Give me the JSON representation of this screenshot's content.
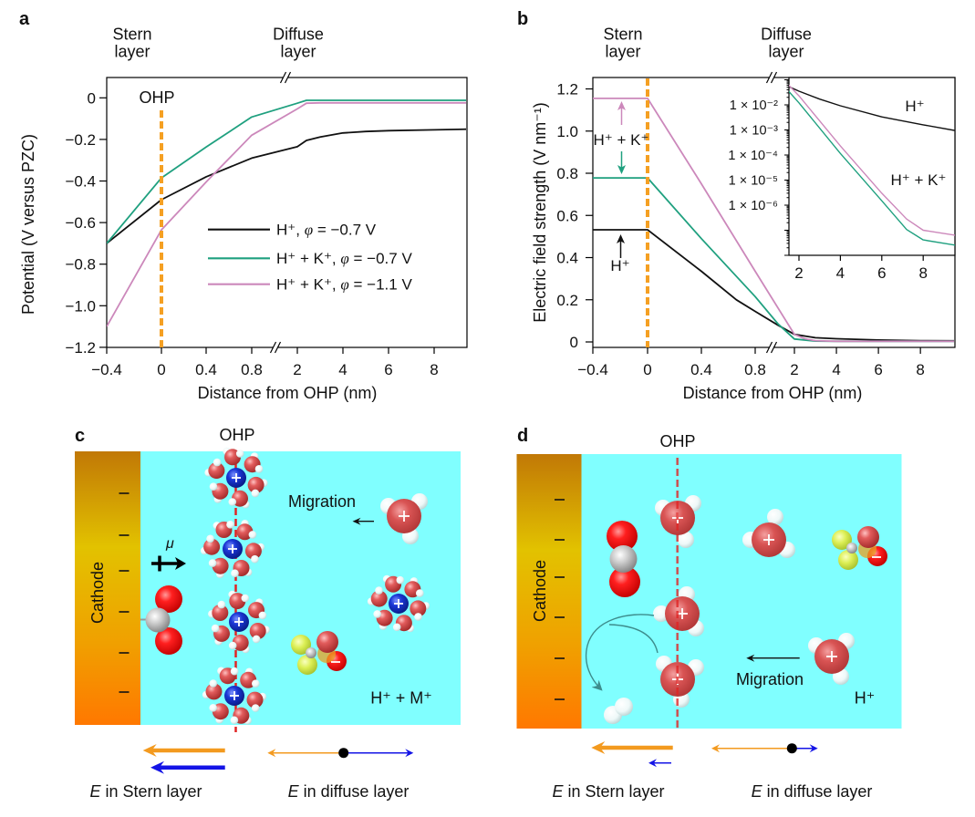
{
  "figure": {
    "panel_a": {
      "label": "a",
      "header_left": {
        "line1": "Stern",
        "line2": "layer"
      },
      "header_right": {
        "line1": "Diffuse",
        "line2": "layer"
      },
      "ohp_label": "OHP",
      "legend": [
        {
          "prefix": "H⁺, ",
          "symbol": "φ",
          "suffix": " = −0.7 V"
        },
        {
          "prefix": "H⁺ + K⁺, ",
          "symbol": "φ",
          "suffix": " = −0.7 V"
        },
        {
          "prefix": "H⁺ + K⁺, ",
          "symbol": "φ",
          "suffix": " = −1.1 V"
        }
      ]
    },
    "panel_b": {
      "label": "b",
      "header_left": {
        "line1": "Stern",
        "line2": "layer"
      },
      "header_right": {
        "line1": "Diffuse",
        "line2": "layer"
      },
      "annotation_hk": "H⁺ + K⁺",
      "annotation_h": "H⁺",
      "inset_label_h": "H⁺",
      "inset_label_hk": "H⁺ + K⁺"
    },
    "panel_c": {
      "label": "c",
      "ohp_label": "OHP",
      "cathode_label": "Cathode",
      "dipole_label": "μ",
      "migration_label": "Migration",
      "electrolyte_label": "H⁺ + M⁺",
      "stern_caption": {
        "symbol": "E",
        "text": " in Stern layer"
      },
      "diffuse_caption": {
        "symbol": "E",
        "text": " in diffuse layer"
      }
    },
    "panel_d": {
      "label": "d",
      "ohp_label": "OHP",
      "cathode_label": "Cathode",
      "migration_label": "Migration",
      "electrolyte_label": "H⁺",
      "stern_caption": {
        "symbol": "E",
        "text": " in Stern layer"
      },
      "diffuse_caption": {
        "symbol": "E",
        "text": " in diffuse layer"
      }
    },
    "colors": {
      "ohp_line": "#f5a023",
      "ohp_line_diagram": "#e02424",
      "electrolyte": "#80ffff",
      "field_orange": "#f39a1f",
      "field_blue": "#1414e6",
      "arrow_pink": "#cc88bb",
      "arrow_green": "#1fa07f",
      "reaction_arrow": "#3d8c8c"
    }
  },
  "chart_data": [
    {
      "panel": "a",
      "type": "line",
      "title": "",
      "xlabel": "Distance from OHP (nm)",
      "ylabel": "Potential (V versus PZC)",
      "xlim": [
        -0.4,
        9.4
      ],
      "x_axis_break": [
        0.8,
        2
      ],
      "ylim": [
        -1.2,
        0.1
      ],
      "grid": false,
      "legend_position": "center-right",
      "xticks": [
        -0.4,
        0,
        0.4,
        0.8,
        2,
        4,
        6,
        8
      ],
      "xtick_labels": [
        "−0.4",
        "0",
        "0.4",
        "0.8",
        "2",
        "4",
        "6",
        "8"
      ],
      "yticks": [
        0,
        -0.2,
        -0.4,
        -0.6,
        -0.8,
        -1.0,
        -1.2
      ],
      "ytick_labels": [
        "0",
        "−0.2",
        "−0.4",
        "−0.6",
        "−0.8",
        "−1.0",
        "−1.2"
      ],
      "reference_line": {
        "x": 0,
        "label": "OHP",
        "style": "dashed"
      },
      "series": [
        {
          "id": "h-only",
          "name": "H⁺, φ = −0.7 V",
          "color": "#111111",
          "x": [
            -0.4,
            0,
            0.4,
            0.8,
            2,
            2.4,
            3,
            4,
            5,
            6,
            8,
            9.4
          ],
          "y": [
            -0.7,
            -0.49,
            -0.38,
            -0.29,
            -0.235,
            -0.205,
            -0.188,
            -0.169,
            -0.162,
            -0.158,
            -0.154,
            -0.151
          ]
        },
        {
          "id": "h-k-07",
          "name": "H⁺ + K⁺, φ = −0.7 V",
          "color": "#1fa07f",
          "x": [
            -0.4,
            0,
            0.4,
            0.8,
            2,
            2.4,
            3,
            9.4
          ],
          "y": [
            -0.7,
            -0.385,
            -0.237,
            -0.092,
            -0.026,
            -0.012,
            -0.012,
            -0.012
          ]
        },
        {
          "id": "h-k-11",
          "name": "H⁺ + K⁺, φ = −1.1 V",
          "color": "#cc88bb",
          "x": [
            -0.4,
            0,
            0.4,
            0.8,
            2,
            2.4,
            3,
            9.4
          ],
          "y": [
            -1.1,
            -0.635,
            -0.405,
            -0.18,
            -0.053,
            -0.026,
            -0.024,
            -0.024
          ]
        }
      ]
    },
    {
      "panel": "b",
      "type": "line",
      "title": "",
      "xlabel": "Distance from OHP (nm)",
      "ylabel": "Electric field strength (V nm⁻¹)",
      "xlim": [
        -0.4,
        9.6
      ],
      "x_axis_break": [
        0.8,
        2
      ],
      "ylim": [
        -0.02,
        1.25
      ],
      "grid": false,
      "xticks": [
        -0.4,
        0,
        0.4,
        0.8,
        2,
        4,
        6,
        8
      ],
      "xtick_labels": [
        "−0.4",
        "0",
        "0.4",
        "0.8",
        "2",
        "4",
        "6",
        "8"
      ],
      "yticks": [
        0,
        0.2,
        0.4,
        0.6,
        0.8,
        1.0,
        1.2
      ],
      "ytick_labels": [
        "0",
        "0.2",
        "0.4",
        "0.6",
        "0.8",
        "1.0",
        "1.2"
      ],
      "reference_line": {
        "x": 0,
        "style": "dashed"
      },
      "series": [
        {
          "id": "h-only",
          "name": "H⁺, φ = −0.7 V",
          "color": "#111111",
          "x": [
            -0.4,
            0,
            0.4,
            0.66,
            0.8,
            1.5,
            2,
            3,
            4,
            6,
            8,
            9.6
          ],
          "y": [
            0.532,
            0.532,
            0.335,
            0.2,
            0.145,
            0.079,
            0.036,
            0.02,
            0.015,
            0.009,
            0.006,
            0.005
          ]
        },
        {
          "id": "h-k-07",
          "name": "H⁺ + K⁺, φ = −0.7 V",
          "color": "#1fa07f",
          "x": [
            -0.4,
            0,
            0.4,
            0.8,
            1.5,
            2,
            3,
            4,
            9.6
          ],
          "y": [
            0.778,
            0.778,
            0.49,
            0.215,
            0.085,
            0.014,
            0.004,
            0.003,
            0.003
          ]
        },
        {
          "id": "h-k-11",
          "name": "H⁺ + K⁺, φ = −1.1 V",
          "color": "#cc88bb",
          "x": [
            -0.4,
            0,
            0.4,
            0.8,
            2,
            2.5,
            3,
            4,
            9.6
          ],
          "y": [
            1.155,
            1.155,
            0.75,
            0.335,
            0.036,
            0.015,
            0.006,
            0.003,
            0.003
          ]
        }
      ]
    },
    {
      "panel": "b-inset",
      "type": "line",
      "yscale": "log",
      "xlim": [
        1.5,
        9.6
      ],
      "ylim": [
        1e-08,
        0.11
      ],
      "xticks": [
        2,
        4,
        6,
        8
      ],
      "xtick_labels": [
        "2",
        "4",
        "6",
        "8"
      ],
      "yticks": [
        0.01,
        0.001,
        0.0001,
        1e-05,
        1e-06
      ],
      "ytick_labels": [
        "1 × 10⁻²",
        "1 × 10⁻³",
        "1 × 10⁻⁴",
        "1 × 10⁻⁵",
        "1 × 10⁻⁶"
      ],
      "series": [
        {
          "id": "h-only",
          "name": "H⁺",
          "color": "#111111",
          "x": [
            1.5,
            2,
            3,
            4,
            6,
            8,
            9.6
          ],
          "y": [
            0.054,
            0.035,
            0.017,
            0.0092,
            0.0033,
            0.0016,
            0.00093
          ]
        },
        {
          "id": "h-k-07",
          "name": "H⁺ + K⁺ (green)",
          "color": "#1fa07f",
          "x": [
            1.5,
            2,
            4,
            6,
            7.2,
            8,
            9.6
          ],
          "y": [
            0.035,
            0.012,
            0.000115,
            1.5e-06,
            1.07e-07,
            4.1e-08,
            2.5e-08
          ]
        },
        {
          "id": "h-k-11",
          "name": "H⁺ + K⁺ (pink)",
          "color": "#cc88bb",
          "x": [
            1.5,
            2,
            4,
            6,
            7.2,
            8,
            9.6
          ],
          "y": [
            0.062,
            0.023,
            0.00023,
            3e-06,
            2.8e-07,
            1e-07,
            6.2e-08
          ]
        }
      ]
    }
  ]
}
